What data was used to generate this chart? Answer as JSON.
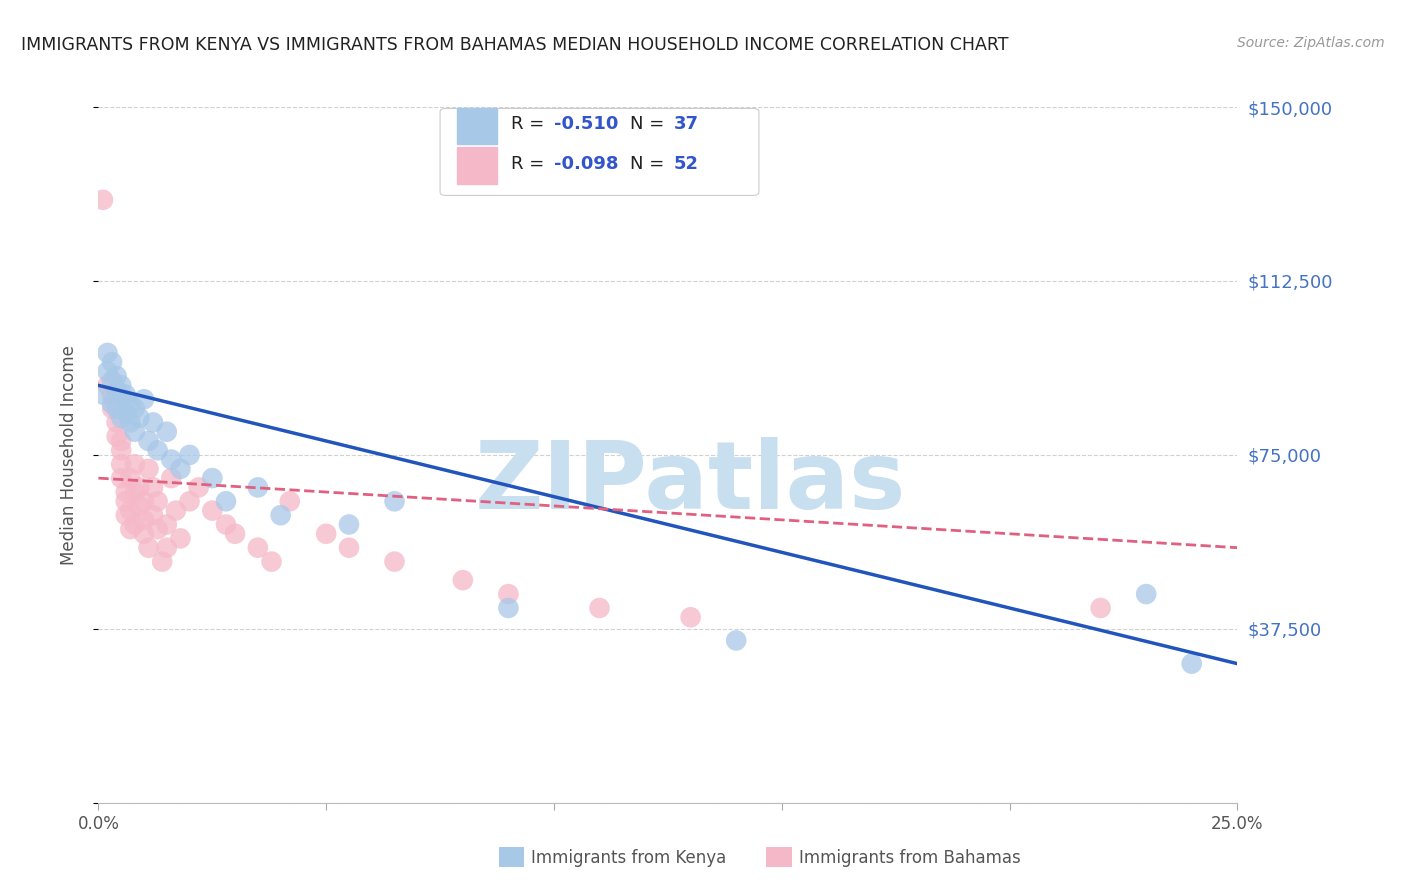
{
  "title": "IMMIGRANTS FROM KENYA VS IMMIGRANTS FROM BAHAMAS MEDIAN HOUSEHOLD INCOME CORRELATION CHART",
  "source": "Source: ZipAtlas.com",
  "ylabel": "Median Household Income",
  "xlim": [
    0,
    0.25
  ],
  "ylim": [
    0,
    150000
  ],
  "ytick_labels": [
    "$150,000",
    "$112,500",
    "$75,000",
    "$37,500",
    ""
  ],
  "ytick_values": [
    150000,
    112500,
    75000,
    37500,
    0
  ],
  "kenya_color": "#a8c8e8",
  "bahamas_color": "#f5b8c8",
  "kenya_line_color": "#2255bb",
  "bahamas_line_color": "#e06080",
  "kenya_R": "-0.510",
  "kenya_N": "37",
  "bahamas_R": "-0.098",
  "bahamas_N": "52",
  "background_color": "#ffffff",
  "grid_color": "#cccccc",
  "watermark_text": "ZIPatlas",
  "watermark_color": "#c8dff0",
  "legend_text_color": "#333333",
  "legend_value_color": "#3355cc",
  "kenya_x": [
    0.001,
    0.002,
    0.002,
    0.003,
    0.003,
    0.003,
    0.004,
    0.004,
    0.004,
    0.005,
    0.005,
    0.005,
    0.006,
    0.006,
    0.007,
    0.007,
    0.008,
    0.008,
    0.009,
    0.01,
    0.011,
    0.012,
    0.013,
    0.015,
    0.016,
    0.018,
    0.02,
    0.025,
    0.028,
    0.035,
    0.04,
    0.055,
    0.065,
    0.09,
    0.14,
    0.23,
    0.24
  ],
  "kenya_y": [
    88000,
    93000,
    97000,
    86000,
    91000,
    95000,
    85000,
    89000,
    92000,
    87000,
    83000,
    90000,
    84000,
    88000,
    82000,
    86000,
    80000,
    85000,
    83000,
    87000,
    78000,
    82000,
    76000,
    80000,
    74000,
    72000,
    75000,
    70000,
    65000,
    68000,
    62000,
    60000,
    65000,
    42000,
    35000,
    45000,
    30000
  ],
  "bahamas_x": [
    0.001,
    0.002,
    0.003,
    0.003,
    0.004,
    0.004,
    0.005,
    0.005,
    0.005,
    0.006,
    0.006,
    0.006,
    0.007,
    0.007,
    0.007,
    0.008,
    0.008,
    0.008,
    0.009,
    0.009,
    0.01,
    0.01,
    0.01,
    0.011,
    0.011,
    0.012,
    0.012,
    0.013,
    0.013,
    0.014,
    0.015,
    0.015,
    0.016,
    0.017,
    0.018,
    0.02,
    0.022,
    0.025,
    0.028,
    0.03,
    0.035,
    0.038,
    0.042,
    0.05,
    0.055,
    0.065,
    0.08,
    0.09,
    0.11,
    0.13,
    0.22,
    0.005
  ],
  "bahamas_y": [
    130000,
    90000,
    88000,
    85000,
    82000,
    79000,
    76000,
    73000,
    70000,
    67000,
    65000,
    62000,
    59000,
    70000,
    63000,
    60000,
    73000,
    67000,
    64000,
    68000,
    61000,
    65000,
    58000,
    72000,
    55000,
    68000,
    62000,
    59000,
    65000,
    52000,
    60000,
    55000,
    70000,
    63000,
    57000,
    65000,
    68000,
    63000,
    60000,
    58000,
    55000,
    52000,
    65000,
    58000,
    55000,
    52000,
    48000,
    45000,
    42000,
    40000,
    42000,
    78000
  ]
}
